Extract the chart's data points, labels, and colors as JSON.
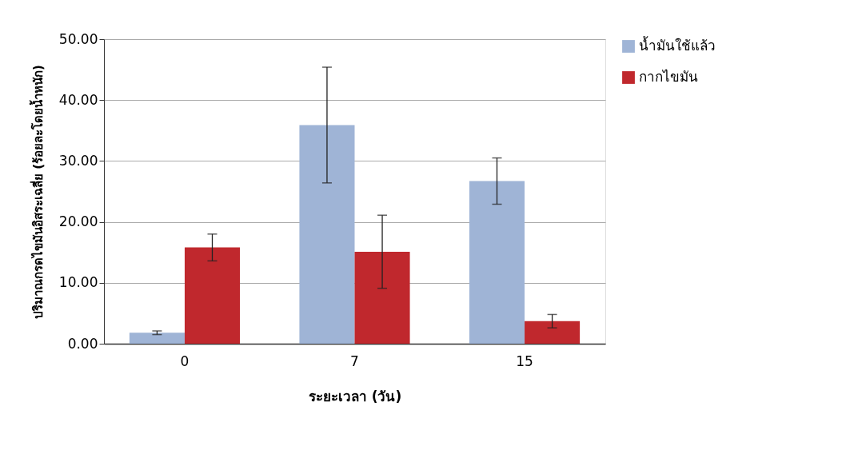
{
  "chart_data": {
    "type": "bar",
    "xlabel": "ระยะเวลา (วัน)",
    "ylabel": "ปริมาณกรดไขมันอิสระเฉลี่ย (ร้อยละโดยน้ำหนัก)",
    "categories": [
      "0",
      "7",
      "15"
    ],
    "series": [
      {
        "name": "น้ำมันใช้แล้ว",
        "color": "#9fb4d6",
        "values": [
          1.8,
          35.9,
          26.7
        ],
        "errors": [
          0.3,
          9.5,
          3.8
        ]
      },
      {
        "name": "กากไขมัน",
        "color": "#c0282d",
        "values": [
          15.8,
          15.1,
          3.7
        ],
        "errors": [
          2.2,
          6.0,
          1.1
        ]
      }
    ],
    "ylim": [
      0,
      50
    ],
    "yticks": [
      {
        "value": 0,
        "label": "0.00"
      },
      {
        "value": 10,
        "label": "10.00"
      },
      {
        "value": 20,
        "label": "20.00"
      },
      {
        "value": 30,
        "label": "30.00"
      },
      {
        "value": 40,
        "label": "40.00"
      },
      {
        "value": 50,
        "label": "50.00"
      }
    ],
    "grid": "y",
    "legend": "right"
  }
}
